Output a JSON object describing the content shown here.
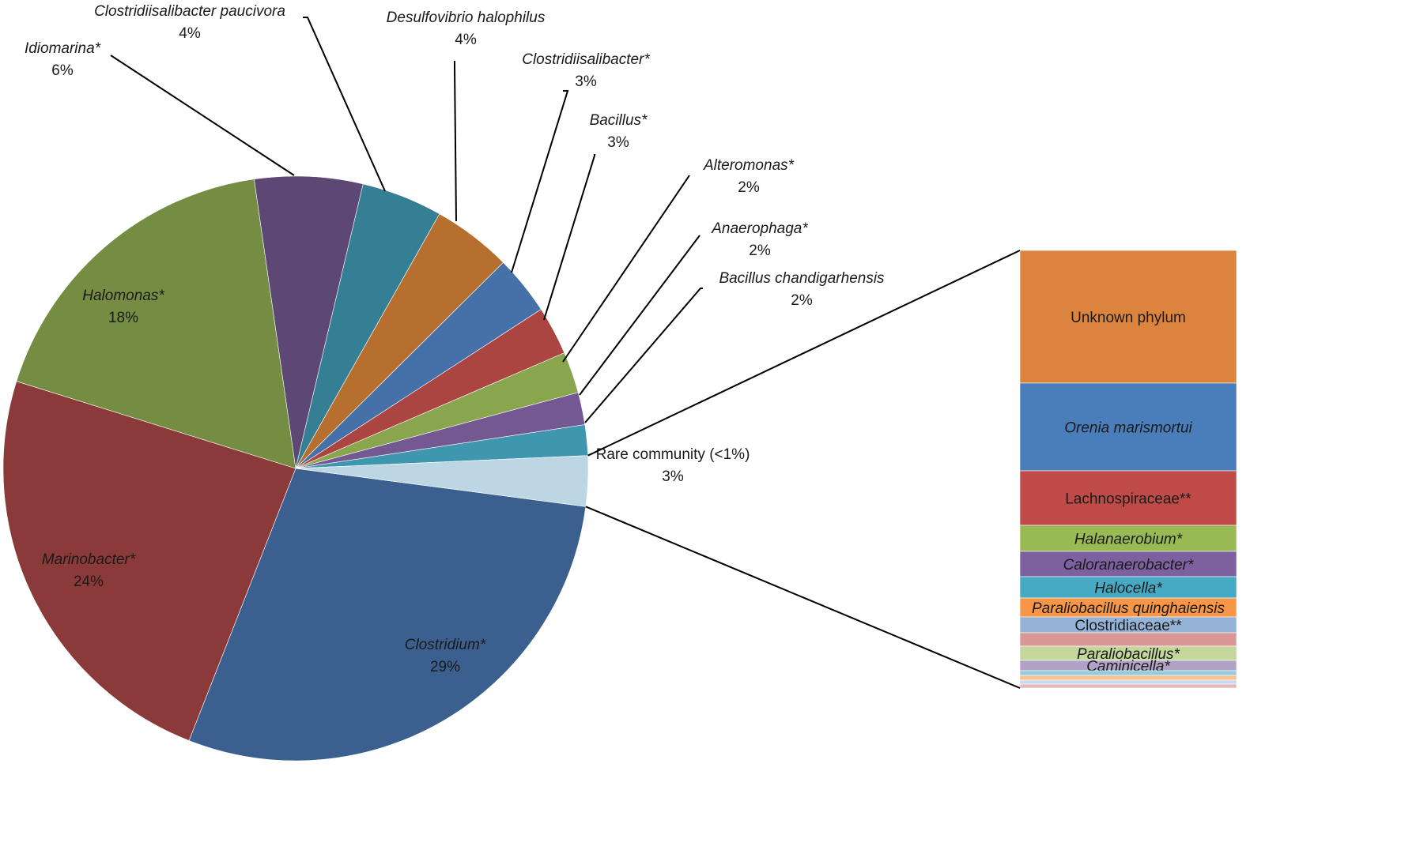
{
  "chart_data": {
    "type": "bar-of-pie",
    "pie": {
      "slices": [
        {
          "label": "Clostridium*",
          "percent_label": "29%",
          "value": 29,
          "color": "#3b5f8e",
          "italic": true
        },
        {
          "label": "Marinobacter*",
          "percent_label": "24%",
          "value": 24,
          "color": "#8b3a3a",
          "italic": true
        },
        {
          "label": "Halomonas*",
          "percent_label": "18%",
          "value": 18,
          "color": "#748d42",
          "italic": true
        },
        {
          "label": "Idiomarina*",
          "percent_label": "6%",
          "value": 6,
          "color": "#5d4875",
          "italic": true
        },
        {
          "label": "Clostridiisalibacter paucivora",
          "percent_label": "4%",
          "value": 4.5,
          "color": "#347f93",
          "italic": true
        },
        {
          "label": "Desulfovibrio halophilus",
          "percent_label": "4%",
          "value": 4.4,
          "color": "#b76f2f",
          "italic": true
        },
        {
          "label": "Clostridiisalibacter*",
          "percent_label": "3%",
          "value": 3.3,
          "color": "#4571a8",
          "italic": true
        },
        {
          "label": "Bacillus*",
          "percent_label": "3%",
          "value": 2.7,
          "color": "#ab4542",
          "italic": true
        },
        {
          "label": "Alteromonas*",
          "percent_label": "2%",
          "value": 2.3,
          "color": "#89a54e",
          "italic": true
        },
        {
          "label": "Anaerophaga*",
          "percent_label": "2%",
          "value": 1.8,
          "color": "#735891",
          "italic": true
        },
        {
          "label": "Bacillus chandigarhensis",
          "percent_label": "2%",
          "value": 1.7,
          "color": "#3e97ae",
          "italic": true
        },
        {
          "label": "Rare community (<1%)",
          "percent_label": "3%",
          "value": 2.8,
          "color": "#bcd6e4",
          "italic": false
        }
      ]
    },
    "bar": {
      "segments": [
        {
          "label": "Unknown phylum",
          "value": 168,
          "color": "#db843d",
          "italic": false
        },
        {
          "label": "Orenia marismortui",
          "value": 111,
          "color": "#4a7ebb",
          "italic": true
        },
        {
          "label": "Lachnospiraceae**",
          "value": 69,
          "color": "#be4b48",
          "italic": false
        },
        {
          "label": "Halanaerobium*",
          "value": 33,
          "color": "#98b954",
          "italic": true
        },
        {
          "label": "Caloranaerobacter*",
          "value": 32,
          "color": "#7d60a0",
          "italic": true
        },
        {
          "label": "Halocella*",
          "value": 27,
          "color": "#46aac4",
          "italic": true
        },
        {
          "label": "Paraliobacillus quinghaiensis",
          "value": 24,
          "color": "#f79646",
          "italic": true
        },
        {
          "label": "Clostridiaceae**",
          "value": 20,
          "color": "#95b3d7",
          "italic": false
        },
        {
          "label": "",
          "value": 17,
          "color": "#d99795",
          "italic": false
        },
        {
          "label": "Paraliobacillus*",
          "value": 18,
          "color": "#c3d69b",
          "italic": true
        },
        {
          "label": "Caminicella*",
          "value": 13,
          "color": "#b3a2c7",
          "italic": true
        },
        {
          "label": "",
          "value": 6,
          "color": "#93cddd",
          "italic": false
        },
        {
          "label": "",
          "value": 6,
          "color": "#fac090",
          "italic": false
        },
        {
          "label": "",
          "value": 5,
          "color": "#c6d9f1",
          "italic": false
        },
        {
          "label": "",
          "value": 5,
          "color": "#e6b9b8",
          "italic": false
        }
      ]
    }
  }
}
